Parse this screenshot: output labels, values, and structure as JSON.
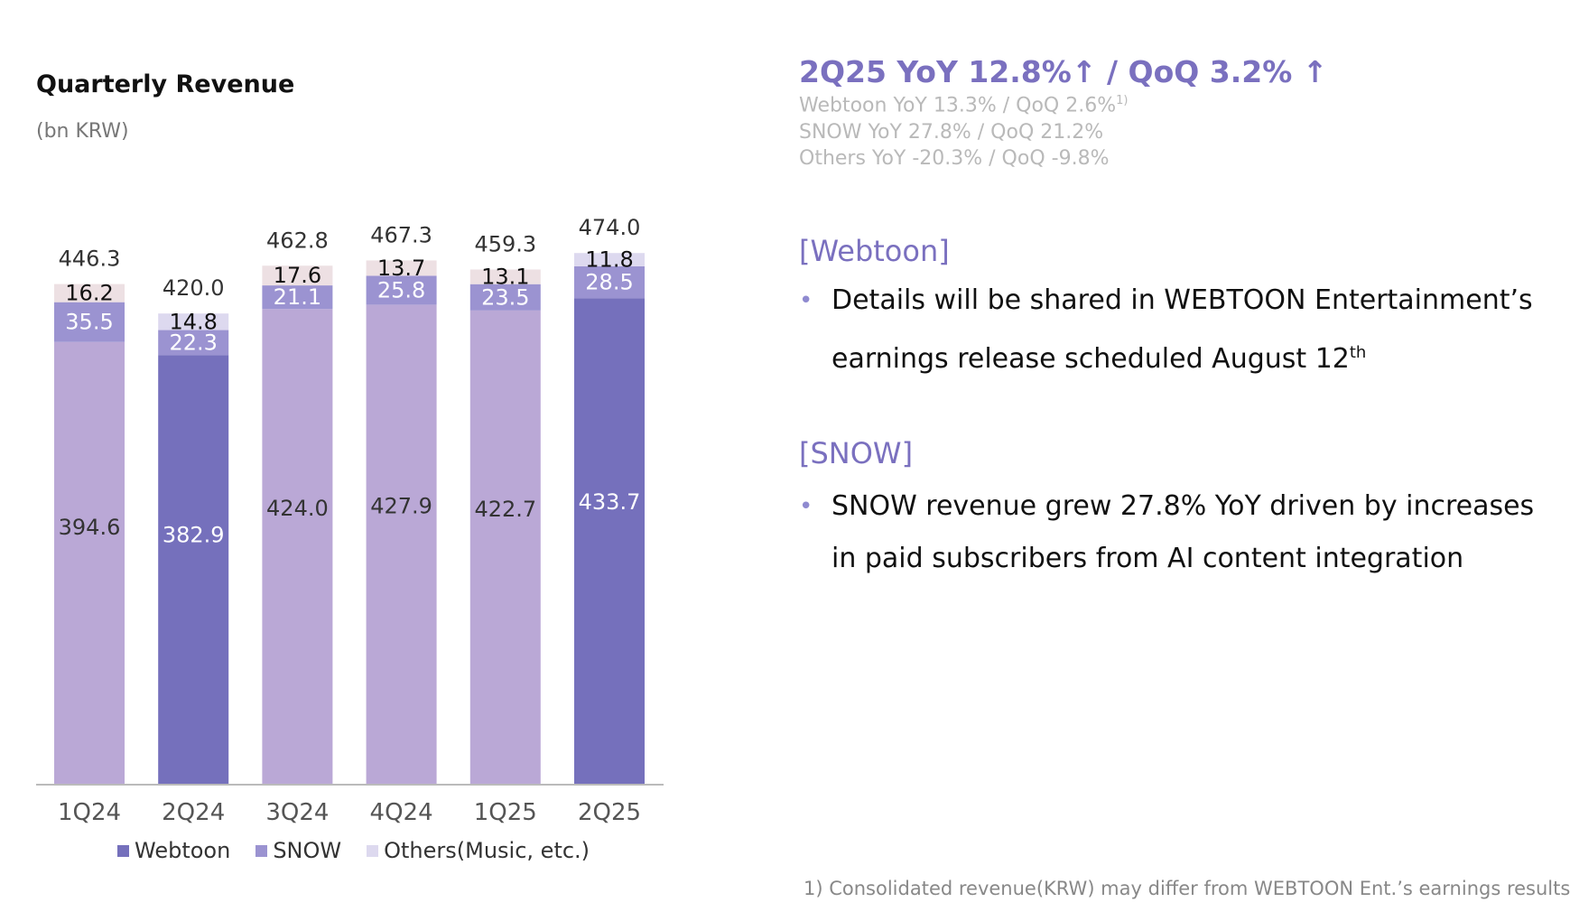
{
  "chart_data": {
    "type": "bar",
    "stacked": true,
    "title": "Quarterly Revenue",
    "unit": "(bn KRW)",
    "categories": [
      "1Q24",
      "2Q24",
      "3Q24",
      "4Q24",
      "1Q25",
      "2Q25"
    ],
    "series": [
      {
        "name": "Webtoon",
        "values": [
          394.6,
          382.9,
          424.0,
          427.9,
          422.7,
          433.7
        ]
      },
      {
        "name": "SNOW",
        "values": [
          35.5,
          22.3,
          21.1,
          25.8,
          23.5,
          28.5
        ]
      },
      {
        "name": "Others(Music, etc.)",
        "values": [
          16.2,
          14.8,
          17.6,
          13.7,
          13.1,
          11.8
        ]
      }
    ],
    "segment_labels": [
      [
        "394.6",
        "382.9",
        "424.0",
        "427.9",
        "422.7",
        "433.7"
      ],
      [
        "35.5",
        "22.3",
        "21.1",
        "25.8",
        "23.5",
        "28.5"
      ],
      [
        "16.2",
        "14.8",
        "17.6",
        "13.7",
        "13.1",
        "11.8"
      ]
    ],
    "totals": [
      "446.3",
      "420.0",
      "462.8",
      "467.3",
      "459.3",
      "474.0"
    ],
    "highlighted_categories": [
      "2Q24",
      "2Q25"
    ],
    "legend_position": "bottom",
    "grid": false
  },
  "colors": {
    "webtoon": "#7570bc",
    "webtoon_light": "#baa8d6",
    "snow": "#9b93d1",
    "others": "#ede0e3",
    "others_highlight": "#ddd9ef",
    "accent": "#7a70bf"
  },
  "legend": [
    {
      "label": "Webtoon",
      "color": "#7570bc"
    },
    {
      "label": "SNOW",
      "color": "#9b93d1"
    },
    {
      "label": "Others(Music, etc.)",
      "color": "#ddd9ef"
    }
  ],
  "headline": "2Q25 YoY 12.8%↑ / QoQ 3.2% ↑",
  "sub_lines": {
    "webtoon": "Webtoon YoY 13.3% / QoQ 2.6%",
    "webtoon_note": "1)",
    "snow": "SNOW YoY 27.8% / QoQ 21.2%",
    "others": "Others YoY -20.3% / QoQ -9.8%"
  },
  "webtoon_section": {
    "title": "[Webtoon]",
    "bullet_main": "Details will be shared in WEBTOON Entertainment’s earnings release scheduled August 12",
    "bullet_sup": "th"
  },
  "snow_section": {
    "title": "[SNOW]",
    "bullet": "SNOW revenue grew 27.8% YoY driven by increases in paid subscribers from AI content integration"
  },
  "footnote": "1) Consolidated revenue(KRW) may differ from WEBTOON Ent.’s earnings results"
}
